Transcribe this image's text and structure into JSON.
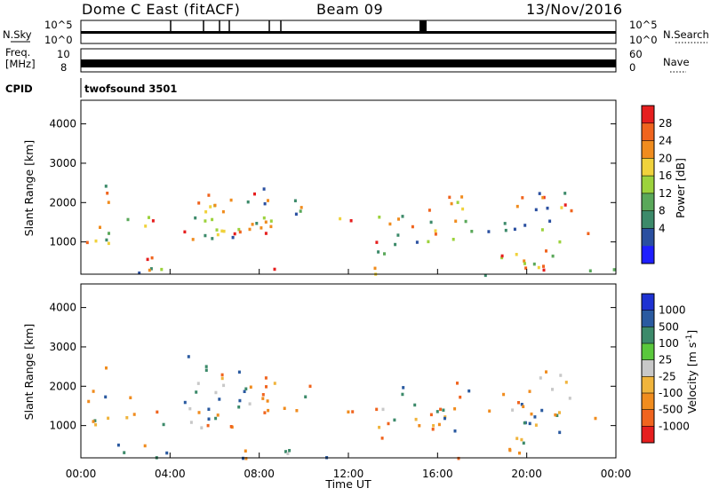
{
  "header": {
    "station": "Dome C East (fitACF)",
    "beam": "Beam 09",
    "date": "13/Nov/2016"
  },
  "noise_panel": {
    "left_label": "N.Sky",
    "right_label": "N.Search",
    "left_ticks": [
      "10^5",
      "10^0"
    ],
    "right_ticks": [
      "10^5",
      "10^0"
    ]
  },
  "freq_panel": {
    "left_label_1": "Freq.",
    "left_label_2": "[MHz]",
    "left_ticks": [
      "10",
      "8"
    ],
    "right_label": "Nave",
    "right_ticks": [
      "60",
      "0"
    ]
  },
  "cpid_panel": {
    "label": "CPID",
    "value": "twofsound 3501"
  },
  "colors": {
    "power_scale": [
      "#1e1eff",
      "#2a4fa0",
      "#3c8a6a",
      "#5aa85a",
      "#9cd23c",
      "#f0d23c",
      "#f08c1e",
      "#f0641e",
      "#e61e1e"
    ],
    "velocity_scale": [
      "#e61e1e",
      "#f0641e",
      "#f08c1e",
      "#f0b43c",
      "#c8c8c8",
      "#5ac83c",
      "#3c8a6a",
      "#2a5aa0",
      "#1e32d2"
    ]
  },
  "chart_data": [
    {
      "type": "heatmap",
      "title": "",
      "xlabel": "Time UT",
      "ylabel": "Slant Range [km]",
      "xlim": [
        "00:00",
        "24:00"
      ],
      "ylim": [
        180,
        4600
      ],
      "x_ticks": [
        "00:00",
        "04:00",
        "08:00",
        "12:00",
        "16:00",
        "20:00",
        "00:00"
      ],
      "y_ticks": [
        1000,
        2000,
        3000,
        4000
      ],
      "colorbar": {
        "label": "Power [dB]",
        "range": [
          0,
          32
        ],
        "ticks": [
          "28",
          "24",
          "20",
          "16",
          "12",
          "8",
          "4"
        ]
      }
    },
    {
      "type": "heatmap",
      "title": "",
      "xlabel": "Time UT",
      "ylabel": "Slant Range [km]",
      "xlim": [
        "00:00",
        "24:00"
      ],
      "ylim": [
        180,
        4600
      ],
      "x_ticks": [
        "00:00",
        "04:00",
        "08:00",
        "12:00",
        "16:00",
        "20:00",
        "00:00"
      ],
      "y_ticks": [
        1000,
        2000,
        3000,
        4000
      ],
      "colorbar": {
        "label": "Velocity [m s^-1]",
        "ticks": [
          "1000",
          "500",
          "100",
          "25",
          "-25",
          "-100",
          "-500",
          "-1000"
        ]
      }
    }
  ]
}
